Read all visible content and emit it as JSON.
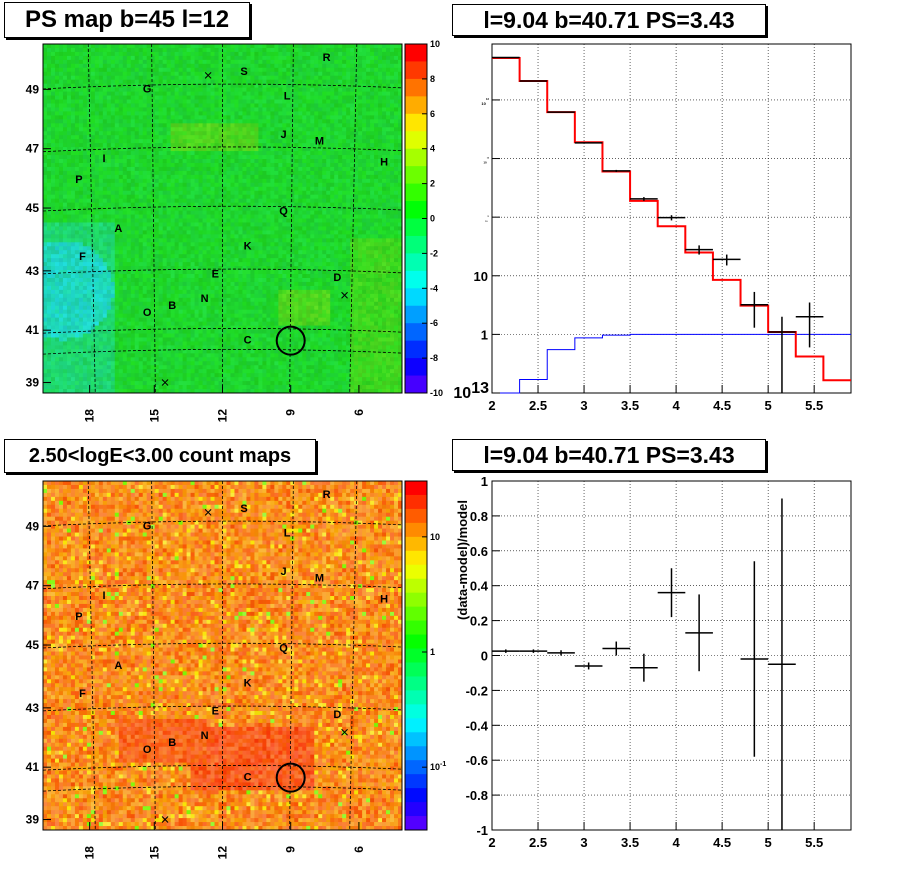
{
  "panels": {
    "map_top_title": "PS map b=45 l=12",
    "spec_top_title": "l=9.04 b=40.71 PS=3.43",
    "map_bottom_title": "2.50<logE<3.00 count maps",
    "resid_title": "l=9.04 b=40.71 PS=3.43"
  },
  "sky_labels": {
    "letters": [
      "R",
      "S",
      "G",
      "L",
      "J",
      "M",
      "H",
      "I",
      "P",
      "Q",
      "A",
      "K",
      "F",
      "E",
      "D",
      "N",
      "B",
      "O",
      "C"
    ],
    "lat_ticks": [
      "49",
      "47",
      "45",
      "43",
      "41",
      "39"
    ],
    "lon_ticks": [
      "18",
      "15",
      "12",
      "9",
      "6"
    ]
  },
  "colorbars": {
    "ps": {
      "labels": [
        "10",
        "8",
        "6",
        "4",
        "2",
        "0",
        "-2",
        "-4",
        "-6",
        "-8",
        "-10"
      ]
    },
    "counts": {
      "labels": [
        "10",
        "1",
        "10^-1"
      ]
    }
  },
  "colors": {
    "ps_map_fill": "#3fe05a",
    "counts_map_fill": "#ff9a32",
    "model_line": "#ff0000",
    "background_line": "#0000ff",
    "data": "#000000"
  },
  "chart_data": [
    {
      "type": "heatmap",
      "title": "PS map b=45 l=12",
      "zlim": [
        -10,
        10
      ],
      "ylim": [
        38.8,
        50.7
      ],
      "x_ticks": [
        "18",
        "15",
        "12",
        "9",
        "6"
      ],
      "y_ticks": [
        "49",
        "47",
        "45",
        "43",
        "41",
        "39"
      ],
      "marked_source": {
        "l": 9.04,
        "b": 40.71
      }
    },
    {
      "type": "line",
      "title": "l=9.04 b=40.71 PS=3.43",
      "x_scale": "linear",
      "y_scale": "log",
      "xlim": [
        2,
        5.9
      ],
      "ylim": [
        0.1,
        90000
      ],
      "x_ticks": [
        "2",
        "2.5",
        "3",
        "3.5",
        "4",
        "4.5",
        "5",
        "5.5"
      ],
      "y_ticks": [
        "10^-1",
        "1",
        "10",
        "10^2",
        "10^3",
        "10^4"
      ],
      "grid": true,
      "series": [
        {
          "bins": [
            2.0,
            2.3,
            2.6,
            2.9,
            3.2,
            3.5,
            3.8,
            4.1,
            4.4,
            4.7,
            5.0,
            5.3,
            5.6,
            5.9
          ],
          "values": [
            52000,
            21000,
            6200,
            1900,
            600,
            190,
            70,
            25,
            8.5,
            3.1,
            1.1,
            0.42,
            0.165
          ]
        },
        {
          "bins": [
            2.0,
            2.3,
            2.6,
            2.9,
            3.2,
            3.5,
            3.8,
            4.1,
            4.4,
            4.7,
            5.0,
            5.3,
            5.6,
            5.9
          ],
          "values": [
            0.1,
            0.17,
            0.55,
            0.87,
            0.97,
            1.0,
            1.0,
            1.0,
            1.0,
            1.0,
            1.0,
            1.0,
            1.0
          ]
        },
        {
          "x": [
            2.15,
            2.45,
            2.75,
            3.05,
            3.35,
            3.65,
            3.95,
            4.25,
            4.55,
            4.85,
            5.15,
            5.45
          ],
          "xerr": 0.15,
          "y": [
            53000,
            21000,
            6200,
            1850,
            615,
            205,
            98,
            28,
            19,
            3.2,
            1.1,
            2.0
          ],
          "ylo": [
            52700,
            20860,
            6120,
            1807,
            590,
            190,
            88,
            23,
            15,
            1.3,
            0.1,
            0.6
          ],
          "yhi": [
            53300,
            21140,
            6280,
            1893,
            640,
            220,
            108,
            33,
            23,
            5.3,
            2.0,
            3.5
          ]
        }
      ]
    },
    {
      "type": "heatmap",
      "title": "2.50<logE<3.00 count maps",
      "z_scale": "log",
      "zlim": [
        0.03,
        40
      ],
      "ylim": [
        38.8,
        50.7
      ],
      "x_ticks": [
        "18",
        "15",
        "12",
        "9",
        "6"
      ],
      "y_ticks": [
        "49",
        "47",
        "45",
        "43",
        "41",
        "39"
      ]
    },
    {
      "type": "scatter",
      "title": "l=9.04 b=40.71 PS=3.43",
      "ylabel": "(data-model)/model",
      "xlim": [
        2,
        5.9
      ],
      "ylim": [
        -1,
        1
      ],
      "x_ticks": [
        "2",
        "2.5",
        "3",
        "3.5",
        "4",
        "4.5",
        "5",
        "5.5"
      ],
      "y_ticks": [
        "-1",
        "-0.8",
        "-0.6",
        "-0.4",
        "-0.2",
        "0",
        "0.2",
        "0.4",
        "0.6",
        "0.8",
        "1"
      ],
      "grid": true,
      "x": [
        2.15,
        2.45,
        2.75,
        3.05,
        3.35,
        3.65,
        3.95,
        4.25,
        4.85,
        5.15
      ],
      "xerr": 0.15,
      "y": [
        0.025,
        0.025,
        0.015,
        -0.06,
        0.04,
        -0.07,
        0.36,
        0.13,
        -0.02,
        -0.05
      ],
      "yerr": [
        0.01,
        0.01,
        0.015,
        0.02,
        0.04,
        0.08,
        0.14,
        0.22,
        0.56,
        0.95
      ]
    }
  ]
}
